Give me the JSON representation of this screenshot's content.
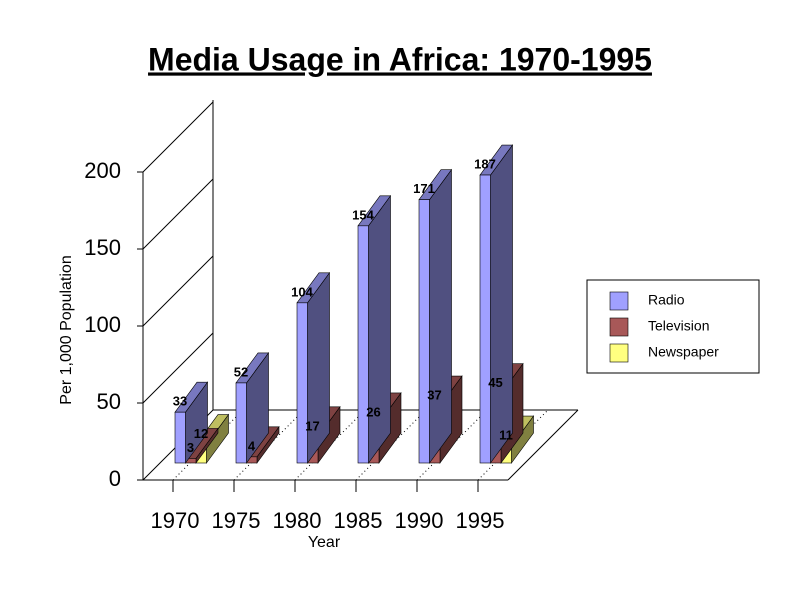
{
  "chart_data": {
    "type": "bar3d",
    "title": "Media Usage in Africa: 1970-1995",
    "x_label": "Year",
    "y_label": "Per 1,000 Population",
    "categories": [
      "1970",
      "1975",
      "1980",
      "1985",
      "1990",
      "1995"
    ],
    "series": [
      {
        "name": "Radio",
        "color": "#a0a0ff",
        "values": [
          33,
          52,
          104,
          154,
          171,
          187
        ]
      },
      {
        "name": "Television",
        "color": "#a85858",
        "values": [
          3,
          4,
          17,
          26,
          37,
          45
        ]
      },
      {
        "name": "Newspaper",
        "color": "#ffff80",
        "values": [
          12,
          null,
          null,
          null,
          null,
          11
        ]
      }
    ],
    "ylim": [
      0,
      200
    ],
    "yticks": [
      0,
      50,
      100,
      150,
      200
    ],
    "legend": "right"
  }
}
